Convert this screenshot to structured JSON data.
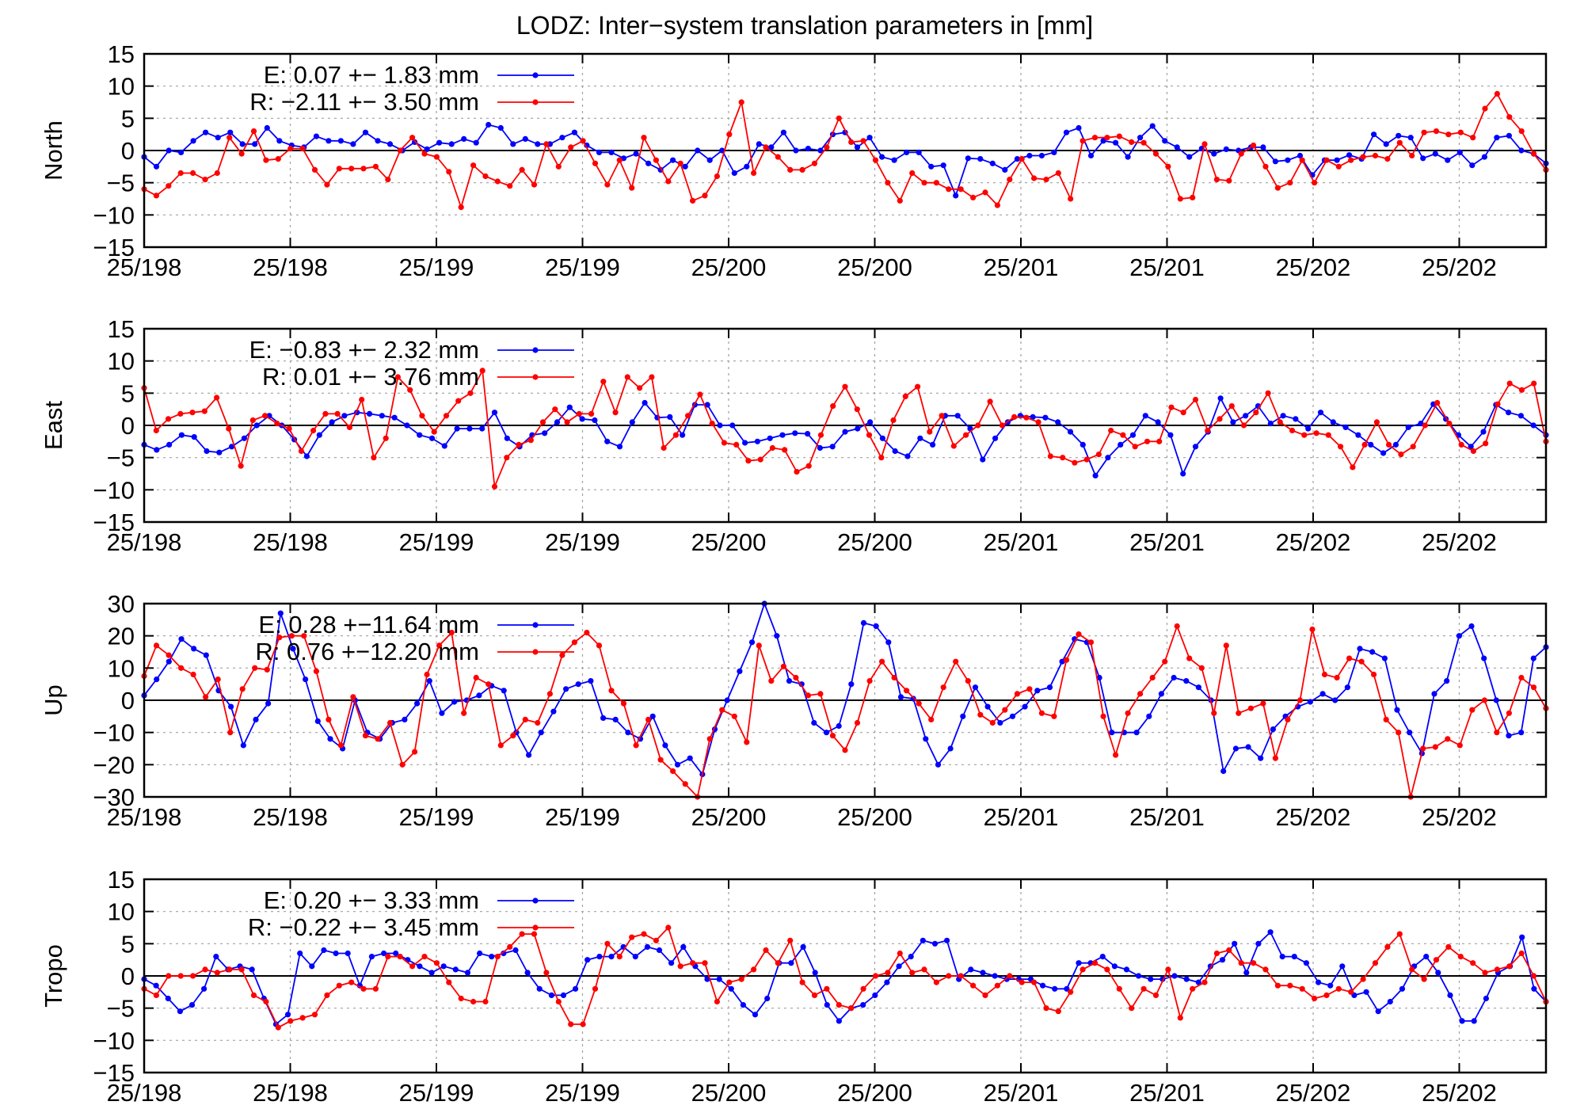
{
  "chart_data": {
    "type": "line",
    "title": "LODZ: Inter−system translation parameters in [mm]",
    "x_ticks": [
      "25/198",
      "25/198",
      "25/199",
      "25/199",
      "25/200",
      "25/200",
      "25/201",
      "25/201",
      "25/202",
      "25/202"
    ],
    "colors": {
      "E": "#0000ff",
      "R": "#ff0000"
    },
    "panels": [
      {
        "ylabel": "North",
        "ylim": [
          -15,
          15
        ],
        "yticks": [
          "15",
          "10",
          "5",
          "0",
          "−5",
          "−10",
          "−15"
        ],
        "series": [
          {
            "name": "E",
            "legend": "E:   0.07 +− 1.83 mm",
            "color": "#0000ff",
            "values": [
              -1,
              -2.5,
              0,
              -0.3,
              1.5,
              2.8,
              2,
              2.8,
              1,
              1,
              3.5,
              1.5,
              0.8,
              0.5,
              2.2,
              1.5,
              1.5,
              1,
              2.8,
              1.5,
              1,
              0,
              1.3,
              0.2,
              1.2,
              1,
              1.8,
              1.2,
              4,
              3.5,
              1,
              1.8,
              1,
              1,
              2,
              2.8,
              0.8,
              -0.3,
              -0.3,
              -1.2,
              -0.5,
              -2,
              -3,
              -1.5,
              -2.5,
              0,
              -1.5,
              0,
              -3.5,
              -2.5,
              1,
              0.5,
              2.8,
              0,
              0.3,
              0,
              2.5,
              2.8,
              0.5,
              2,
              -1,
              -1.5,
              -0.3,
              -0.3,
              -2.5,
              -2.3,
              -7,
              -1.2,
              -1.3,
              -2,
              -3,
              -1.3,
              -0.8,
              -0.8,
              -0.3,
              2.8,
              3.5,
              -0.8,
              1.5,
              1.2,
              -1,
              2,
              3.8,
              1.5,
              0.5,
              -1,
              0.3,
              -0.5,
              0.2,
              0,
              0.5,
              0.5,
              -1.7,
              -1.5,
              -0.8,
              -3.8,
              -1.5,
              -1.5,
              -0.7,
              -1.3,
              2.5,
              1,
              2.3,
              2,
              -1.2,
              -0.5,
              -1.5,
              -0.3,
              -2.3,
              -1,
              2,
              2.3,
              0,
              -0.5,
              -2
            ]
          },
          {
            "name": "R",
            "legend": "R:  −2.11 +− 3.50 mm",
            "color": "#ff0000",
            "values": [
              -6,
              -7,
              -5.5,
              -3.5,
              -3.5,
              -4.5,
              -3.5,
              2,
              -0.5,
              3,
              -1.5,
              -1.3,
              0.3,
              0.3,
              -3,
              -5.3,
              -2.8,
              -2.8,
              -2.8,
              -2.5,
              -4.5,
              0,
              2,
              -0.5,
              -1,
              -3.3,
              -8.8,
              -2.3,
              -4,
              -4.8,
              -5.5,
              -3,
              -5.3,
              1,
              -2.5,
              0.5,
              1.5,
              -2,
              -5.3,
              -1.5,
              -5.8,
              2,
              -1.5,
              -4.8,
              -2,
              -7.8,
              -7,
              -4,
              2.5,
              7.5,
              -3.5,
              0.5,
              -1,
              -3,
              -3,
              -2,
              0.5,
              5,
              1.3,
              1.5,
              -1.5,
              -5,
              -7.8,
              -3.5,
              -5,
              -5,
              -6,
              -6,
              -7.3,
              -6.5,
              -8.5,
              -4.5,
              -1.3,
              -4.3,
              -4.5,
              -3.5,
              -7.5,
              1.5,
              2,
              2,
              2.2,
              1.3,
              1.2,
              -0.5,
              -2.5,
              -7.5,
              -7.3,
              1,
              -4.5,
              -4.7,
              -0.5,
              0.8,
              -2.5,
              -5.8,
              -5,
              -1.5,
              -5,
              -1.5,
              -2.5,
              -1.5,
              -1,
              -0.8,
              -1.3,
              1.2,
              -0.8,
              2.8,
              3,
              2.5,
              2.8,
              2,
              6.5,
              8.8,
              5.2,
              3,
              -0.5,
              -3
            ]
          }
        ]
      },
      {
        "ylabel": "East",
        "ylim": [
          -15,
          15
        ],
        "yticks": [
          "15",
          "10",
          "5",
          "0",
          "−5",
          "−10",
          "−15"
        ],
        "series": [
          {
            "name": "E",
            "legend": "E:  −0.83 +− 2.32 mm",
            "color": "#0000ff",
            "values": [
              -3,
              -3.8,
              -3,
              -1.5,
              -1.8,
              -4,
              -4.2,
              -3.3,
              -2,
              0,
              1.5,
              0,
              -2.2,
              -4.8,
              -1.5,
              0.5,
              1.5,
              2,
              1.8,
              1.5,
              1.2,
              0,
              -1.5,
              -2,
              -3.2,
              -0.5,
              -0.5,
              -0.5,
              2,
              -2,
              -3.3,
              -1.5,
              -1.2,
              0.5,
              2.8,
              1,
              0.8,
              -2.5,
              -3.3,
              0.5,
              3.5,
              1.2,
              1.3,
              -1.5,
              3.2,
              3.2,
              0,
              0,
              -2.7,
              -2.5,
              -2,
              -1.5,
              -1.2,
              -1.3,
              -3.5,
              -3.3,
              -1,
              -0.5,
              0.5,
              -2,
              -4,
              -4.8,
              -2,
              -3,
              1.5,
              1.5,
              -0.5,
              -5.3,
              -2,
              0.5,
              1.5,
              1.3,
              1.2,
              0.5,
              -1,
              -3,
              -7.8,
              -5,
              -3,
              -1.5,
              1.5,
              0.5,
              -1.5,
              -7.5,
              -3.3,
              -1,
              4.2,
              0.5,
              1.5,
              3,
              0.3,
              1.5,
              1,
              -0.5,
              2,
              0.5,
              -0.3,
              -1.5,
              -3,
              -4.3,
              -3,
              -0.3,
              0.3,
              3.3,
              1,
              -1.5,
              -3.3,
              -1,
              3.2,
              2,
              1.5,
              0,
              -1.5
            ]
          },
          {
            "name": "R",
            "legend": "R:   0.01 +− 3.76 mm",
            "color": "#ff0000",
            "values": [
              5.8,
              -0.8,
              1,
              1.8,
              2,
              2.2,
              4.3,
              -0.5,
              -6.3,
              0.8,
              1.5,
              0.3,
              -0.5,
              -4,
              -0.8,
              1.8,
              1.8,
              -0.3,
              4,
              -5,
              -2,
              7.5,
              5.5,
              1.5,
              -1,
              1.5,
              3.8,
              5,
              8.5,
              -9.5,
              -5,
              -3,
              -2.3,
              0.5,
              2.5,
              0.5,
              1.8,
              1.8,
              6.8,
              2,
              7.5,
              5.8,
              7.5,
              -3.5,
              -1.5,
              1.5,
              4.8,
              0.3,
              -2.7,
              -3,
              -5.5,
              -5.3,
              -3.5,
              -3.8,
              -7.2,
              -6.3,
              -1.5,
              3,
              6,
              2.5,
              -1.5,
              -5,
              0.8,
              4.5,
              6,
              -1,
              1.5,
              -3.2,
              -1.5,
              0,
              3.7,
              0,
              1.3,
              1.2,
              0.5,
              -4.8,
              -5,
              -5.8,
              -5.3,
              -4.5,
              -0.8,
              -1.5,
              -3.3,
              -2.5,
              -2.5,
              2.8,
              2,
              4,
              -0.8,
              1,
              3,
              0,
              2,
              5,
              0.5,
              -0.8,
              -1.5,
              -1.2,
              -1.5,
              -3.3,
              -6.5,
              -3,
              0.5,
              -3,
              -4.5,
              -3.3,
              0,
              3.5,
              0.3,
              -3,
              -4,
              -2.8,
              3.3,
              6.5,
              5.5,
              6.5,
              -2.5
            ]
          }
        ]
      },
      {
        "ylabel": "Up",
        "ylim": [
          -30,
          30
        ],
        "yticks": [
          "30",
          "20",
          "10",
          "0",
          "−10",
          "−20",
          "−30"
        ],
        "series": [
          {
            "name": "E",
            "legend": "E:   0.28 +−11.64 mm",
            "color": "#0000ff",
            "values": [
              1.5,
              6.5,
              12,
              19,
              16,
              14,
              3,
              -2,
              -14,
              -6,
              -1,
              27,
              16,
              6.5,
              -6.5,
              -12,
              -15,
              0,
              -10,
              -12,
              -7,
              -6,
              -1,
              6,
              -4,
              -0.5,
              0,
              1.5,
              4.5,
              3,
              -10,
              -17,
              -10,
              -3.5,
              3.5,
              5,
              6,
              -5.5,
              -6,
              -10,
              -12,
              -5,
              -14,
              -20,
              -18,
              -23,
              -9,
              0,
              9,
              18,
              30,
              20,
              6,
              5,
              -7,
              -10,
              -8,
              5,
              24,
              23,
              18,
              1,
              0.5,
              -12,
              -20,
              -15,
              -5,
              4,
              -2,
              -7,
              -5,
              -2,
              3,
              4,
              12,
              19,
              18,
              7,
              -10,
              -10,
              -10,
              -5,
              2,
              7,
              6,
              4,
              0,
              -22,
              -15,
              -14.5,
              -18,
              -9,
              -5,
              -2,
              -0.5,
              2,
              0,
              4,
              16,
              15,
              13,
              -3,
              -10,
              -16.5,
              2,
              6,
              20,
              23,
              13,
              0,
              -11,
              -10,
              13,
              16.5
            ]
          },
          {
            "name": "R",
            "legend": "R:   0.76 +−12.20 mm",
            "color": "#ff0000",
            "values": [
              7.5,
              17,
              14,
              10,
              8,
              1,
              6.5,
              -10,
              3.5,
              10,
              9.5,
              19.5,
              20,
              20,
              9,
              -6,
              -14,
              1,
              -11,
              -12,
              -7,
              -20,
              -16,
              8,
              17,
              21,
              -4,
              7,
              5,
              -14,
              -11,
              -6,
              -7,
              2,
              14,
              18,
              21,
              17,
              3,
              -1,
              -14,
              -6,
              -18.5,
              -22,
              -26,
              -30,
              -12,
              -3,
              -5,
              -13,
              17,
              6,
              10.5,
              7,
              1.5,
              2,
              -11,
              -15.5,
              -7,
              6,
              12,
              7,
              3,
              -1,
              -6,
              4,
              12,
              6,
              -4.5,
              -7,
              -3,
              2,
              3.5,
              -4,
              -5,
              12.5,
              20.5,
              18,
              -5,
              -17,
              -4,
              2,
              7,
              12,
              23,
              13,
              10,
              -4,
              17,
              -4,
              -2.5,
              -1,
              -18,
              -6,
              0,
              22,
              8,
              7,
              13,
              12,
              8,
              -6,
              -10,
              -30,
              -15,
              -14.5,
              -12,
              -14,
              -3,
              0,
              -10,
              -4,
              7,
              4,
              -2.5
            ]
          }
        ]
      },
      {
        "ylabel": "Tropo",
        "ylim": [
          -15,
          15
        ],
        "yticks": [
          "15",
          "10",
          "5",
          "0",
          "−5",
          "−10",
          "−15"
        ],
        "series": [
          {
            "name": "E",
            "legend": "E:   0.20 +− 3.33 mm",
            "color": "#0000ff",
            "values": [
              -0.5,
              -1.5,
              -3.5,
              -5.5,
              -4.5,
              -2,
              3,
              1,
              1.5,
              1,
              -3.5,
              -7.5,
              -6,
              3.5,
              1.5,
              4,
              3.5,
              3.5,
              -1.5,
              3,
              3.5,
              3.5,
              2.5,
              1.5,
              0.5,
              1.5,
              1,
              0.5,
              3.5,
              3,
              3.5,
              4,
              0.5,
              -2,
              -3,
              -3,
              -2,
              2.5,
              3,
              3,
              4.5,
              3,
              4.5,
              4,
              2,
              4.5,
              1.5,
              -0.5,
              -0.5,
              -2,
              -4.5,
              -6,
              -3.5,
              2,
              2,
              4.5,
              0.5,
              -4.5,
              -7,
              -5,
              -4.5,
              -3,
              -1,
              1.5,
              3,
              5.5,
              5,
              5.5,
              -0.5,
              1,
              0.5,
              0,
              -0.5,
              -0.5,
              -0.5,
              -1.5,
              -2,
              -2,
              2,
              2,
              3,
              1.5,
              1,
              0,
              -0.5,
              -0.5,
              0,
              -0.5,
              -1,
              1.5,
              2.5,
              5,
              0.5,
              5,
              6.8,
              3,
              3,
              2,
              -1,
              -1.5,
              1.5,
              -3,
              -2.5,
              -5.5,
              -4,
              -2,
              1.5,
              3,
              0.5,
              -3,
              -7,
              -7,
              -3.5,
              0.5,
              1.5,
              6,
              -2,
              -4
            ]
          },
          {
            "name": "R",
            "legend": "R:  −0.22 +− 3.45 mm",
            "color": "#ff0000",
            "values": [
              -2,
              -3,
              0,
              0,
              0,
              1,
              0.5,
              1,
              1,
              -3,
              -4,
              -8,
              -7,
              -6.5,
              -6,
              -3,
              -1.5,
              -1,
              -2,
              -2,
              3,
              3,
              1.5,
              3,
              2,
              -1,
              -3.5,
              -4,
              -4,
              3,
              4.5,
              6.5,
              6.5,
              0.5,
              -4,
              -7.5,
              -7.5,
              -2,
              5,
              3,
              6,
              6.5,
              5.5,
              7.5,
              1.5,
              2,
              2,
              -4,
              -1,
              -0.5,
              1,
              4,
              2,
              5.5,
              -1,
              -3,
              -2,
              -4.5,
              -5,
              -2,
              0,
              0.5,
              3.5,
              0.5,
              1,
              -1,
              0,
              0,
              -1.5,
              -3,
              -1.5,
              0,
              -1,
              -1,
              -5,
              -5.5,
              -2.5,
              1,
              2,
              1,
              -2,
              -5,
              -2,
              -3,
              1,
              -6.5,
              -2,
              -1,
              3.5,
              4,
              2,
              2,
              1,
              -1.5,
              -1.5,
              -2,
              -3.5,
              -3,
              -2,
              -2.5,
              -0.5,
              2,
              4.5,
              6.5,
              1,
              -0.5,
              2.5,
              4.5,
              3,
              2,
              0.5,
              1,
              1.5,
              3.5,
              0,
              -4
            ]
          }
        ]
      }
    ]
  }
}
